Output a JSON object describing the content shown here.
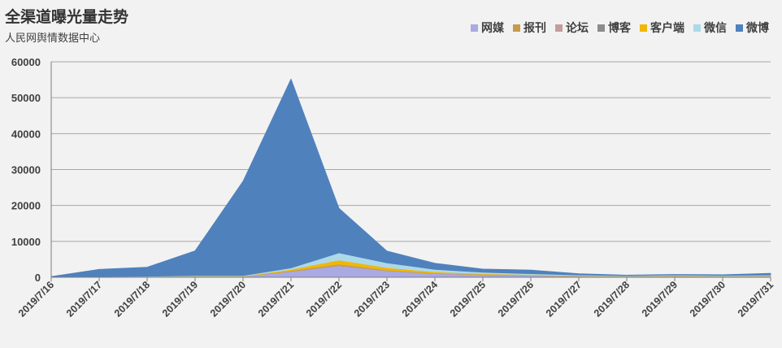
{
  "chart_data": {
    "type": "area",
    "stacked": true,
    "title": "全渠道曝光量走势",
    "subtitle": "人民网舆情数据中心",
    "categories": [
      "2019/7/16",
      "2019/7/17",
      "2019/7/18",
      "2019/7/19",
      "2019/7/20",
      "2019/7/21",
      "2019/7/22",
      "2019/7/23",
      "2019/7/24",
      "2019/7/25",
      "2019/7/26",
      "2019/7/27",
      "2019/7/28",
      "2019/7/29",
      "2019/7/30",
      "2019/7/31"
    ],
    "ylim": [
      0,
      60000
    ],
    "yticks": [
      0,
      10000,
      20000,
      30000,
      40000,
      50000,
      60000
    ],
    "grid": true,
    "legend_position": "top-right",
    "series": [
      {
        "name": "网媒",
        "color": "#a9a9e3",
        "values": [
          0,
          100,
          150,
          200,
          200,
          1600,
          3200,
          1800,
          1000,
          700,
          500,
          300,
          200,
          200,
          200,
          300
        ]
      },
      {
        "name": "报刊",
        "color": "#c79b4b",
        "values": [
          0,
          0,
          0,
          0,
          0,
          100,
          200,
          100,
          50,
          50,
          20,
          20,
          10,
          100,
          20,
          20
        ]
      },
      {
        "name": "论坛",
        "color": "#c49c9e",
        "values": [
          0,
          0,
          0,
          0,
          0,
          50,
          100,
          50,
          30,
          20,
          20,
          10,
          10,
          20,
          10,
          10
        ]
      },
      {
        "name": "博客",
        "color": "#8c8c8c",
        "values": [
          0,
          0,
          0,
          0,
          0,
          50,
          100,
          50,
          20,
          20,
          10,
          10,
          10,
          10,
          10,
          10
        ]
      },
      {
        "name": "客户端",
        "color": "#f2b705",
        "values": [
          0,
          50,
          50,
          100,
          100,
          400,
          1200,
          700,
          400,
          200,
          150,
          100,
          50,
          100,
          50,
          100
        ]
      },
      {
        "name": "微信",
        "color": "#acd9e8",
        "values": [
          0,
          50,
          100,
          150,
          150,
          400,
          2000,
          1300,
          700,
          400,
          300,
          200,
          150,
          200,
          200,
          200
        ]
      },
      {
        "name": "微博",
        "color": "#4f81bd",
        "values": [
          200,
          2000,
          2500,
          6900,
          26300,
          52600,
          12400,
          3300,
          1700,
          900,
          1000,
          360,
          170,
          170,
          210,
          450
        ]
      }
    ]
  }
}
